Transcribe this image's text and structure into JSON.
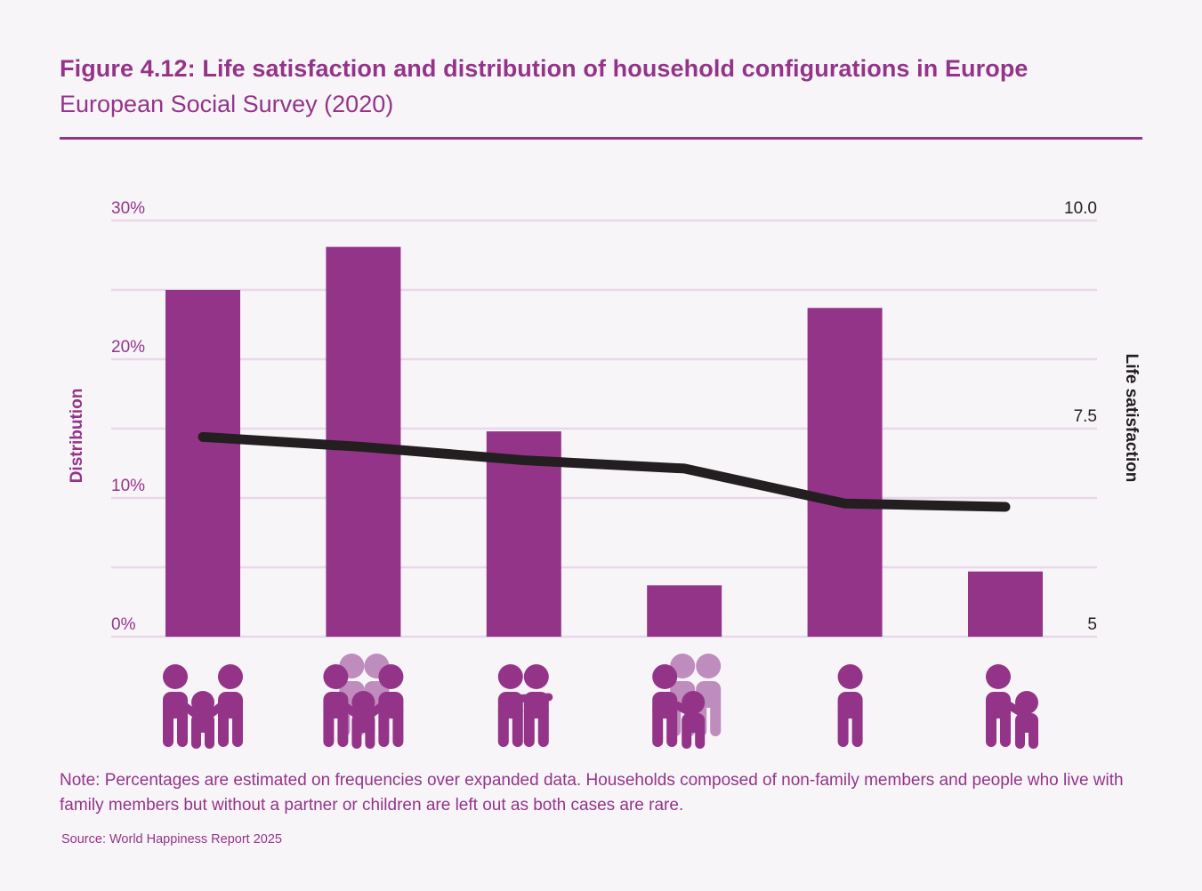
{
  "header": {
    "title": "Figure 4.12: Life satisfaction and distribution of household configurations in Europe",
    "subtitle": "European Social Survey (2020)"
  },
  "colors": {
    "accent": "#943489",
    "accent_light": "#be8cbd",
    "grid": "#e8d8e8",
    "line": "#231f20",
    "background": "#f8f5f9"
  },
  "chart_data": {
    "type": "bar",
    "title": "Life satisfaction and distribution of household configurations in Europe",
    "categories": [
      "Couple with children",
      "Couple with children and other family",
      "Couple",
      "Single parent with other family",
      "Single",
      "Single parent"
    ],
    "category_icons": [
      "two-adults-one-child-icon",
      "two-adults-one-child-with-extended-family-icon",
      "two-adults-icon",
      "adult-child-with-extended-family-icon",
      "single-adult-icon",
      "adult-with-child-icon"
    ],
    "series": [
      {
        "name": "Distribution",
        "type": "bar",
        "axis": "left",
        "unit": "%",
        "values": [
          25.0,
          28.1,
          14.8,
          3.7,
          23.7,
          4.7
        ]
      },
      {
        "name": "Life satisfaction",
        "type": "line",
        "axis": "right",
        "values": [
          7.4,
          7.28,
          7.12,
          7.02,
          6.6,
          6.56
        ]
      }
    ],
    "left_axis": {
      "label": "Distribution",
      "range": [
        0,
        30
      ],
      "ticks": [
        0,
        10,
        20,
        30
      ],
      "tick_labels": [
        "0%",
        "10%",
        "20%",
        "30%"
      ]
    },
    "right_axis": {
      "label": "Life satisfaction",
      "range": [
        5,
        10
      ],
      "ticks": [
        5,
        7.5,
        10
      ],
      "tick_labels": [
        "5",
        "7.5",
        "10.0"
      ]
    },
    "gridlines": [
      0,
      5,
      10,
      15,
      20,
      25,
      30
    ],
    "grid": true,
    "legend": "none"
  },
  "footer": {
    "note": "Note: Percentages are estimated on frequencies over expanded data. Households composed of non-family members and people who live with family members but without a partner or children are left out as both cases are rare.",
    "source": "Source: World Happiness Report 2025"
  }
}
